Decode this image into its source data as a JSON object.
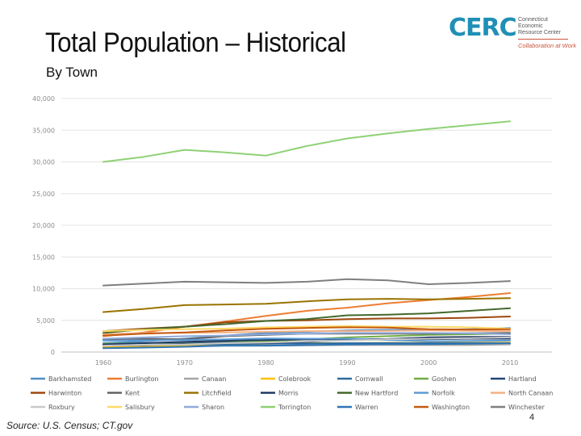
{
  "slide": {
    "title": "Total Population – Historical",
    "subtitle": "By Town",
    "source": "Source: U.S. Census; CT.gov",
    "page_number": "4"
  },
  "logo": {
    "mark": "CERC",
    "name": "Connecticut\nEconomic\nResource Center",
    "tagline": "Collaboration at Work"
  },
  "chart_data": {
    "type": "line",
    "title": "",
    "xlabel": "",
    "ylabel": "",
    "x": [
      1960,
      1965,
      1970,
      1975,
      1980,
      1985,
      1990,
      1995,
      2000,
      2005,
      2010
    ],
    "xticks": [
      1960,
      1970,
      1980,
      1990,
      2000,
      2010
    ],
    "ylim": [
      0,
      40000
    ],
    "yticks": [
      0,
      5000,
      10000,
      15000,
      20000,
      25000,
      30000,
      35000,
      40000
    ],
    "ytick_labels": [
      "0",
      "5,000",
      "10,000",
      "15,000",
      "20,000",
      "25,000",
      "30,000",
      "35,000",
      "40,000"
    ],
    "gridlines": "horizontal",
    "legend_position": "bottom",
    "series": [
      {
        "name": "Barkhamsted",
        "color": "#4e8fc7",
        "values": [
          1400,
          1700,
          2100,
          2600,
          3000,
          3200,
          3400,
          3500,
          3500,
          3600,
          3800
        ]
      },
      {
        "name": "Burlington",
        "color": "#ed7d31",
        "values": [
          2500,
          3100,
          4000,
          4800,
          5700,
          6500,
          7000,
          7700,
          8200,
          8700,
          9300
        ]
      },
      {
        "name": "Canaan",
        "color": "#a5a5a5",
        "values": [
          900,
          920,
          930,
          1000,
          1000,
          1050,
          1100,
          1100,
          1100,
          1100,
          1200
        ]
      },
      {
        "name": "Colebrook",
        "color": "#ffc000",
        "values": [
          800,
          900,
          1000,
          1200,
          1300,
          1400,
          1400,
          1450,
          1450,
          1480,
          1500
        ]
      },
      {
        "name": "Cornwall",
        "color": "#2e6b9e",
        "values": [
          1050,
          1100,
          1200,
          1250,
          1300,
          1350,
          1400,
          1420,
          1400,
          1420,
          1400
        ]
      },
      {
        "name": "Goshen",
        "color": "#70ad47",
        "values": [
          1300,
          1400,
          1500,
          1650,
          1700,
          2000,
          2300,
          2500,
          2700,
          2800,
          2900
        ]
      },
      {
        "name": "Hartland",
        "color": "#264478",
        "values": [
          1000,
          1100,
          1300,
          1500,
          1400,
          1600,
          1900,
          2000,
          2000,
          2100,
          2100
        ]
      },
      {
        "name": "Harwinton",
        "color": "#9e480e",
        "values": [
          3300,
          3700,
          4000,
          4700,
          4900,
          5000,
          5200,
          5300,
          5300,
          5400,
          5600
        ]
      },
      {
        "name": "Kent",
        "color": "#636363",
        "values": [
          2000,
          2100,
          2000,
          2500,
          2700,
          2900,
          2900,
          2900,
          2900,
          2950,
          3000
        ]
      },
      {
        "name": "Litchfield",
        "color": "#997300",
        "values": [
          6300,
          6800,
          7400,
          7500,
          7600,
          8000,
          8300,
          8400,
          8300,
          8400,
          8500
        ]
      },
      {
        "name": "Morris",
        "color": "#1f3864",
        "values": [
          1200,
          1400,
          1600,
          1800,
          1900,
          2000,
          2000,
          2050,
          2300,
          2400,
          2400
        ]
      },
      {
        "name": "New Hartford",
        "color": "#43682b",
        "values": [
          3000,
          3600,
          4000,
          4400,
          4900,
          5200,
          5800,
          5900,
          6100,
          6500,
          6900
        ]
      },
      {
        "name": "Norfolk",
        "color": "#5b9bd5",
        "values": [
          1800,
          1850,
          1900,
          2000,
          2150,
          2100,
          2100,
          1900,
          1700,
          1750,
          1800
        ]
      },
      {
        "name": "North Canaan",
        "color": "#f4b183",
        "values": [
          2800,
          3000,
          3000,
          3100,
          3200,
          3300,
          3300,
          3350,
          3400,
          3350,
          3300
        ]
      },
      {
        "name": "Roxbury",
        "color": "#c9c9c9",
        "values": [
          1000,
          1150,
          1200,
          1400,
          1500,
          1700,
          1800,
          2000,
          2100,
          2200,
          2300
        ]
      },
      {
        "name": "Salisbury",
        "color": "#ffd966",
        "values": [
          3300,
          3500,
          3600,
          3700,
          3900,
          4000,
          4100,
          4000,
          4000,
          3900,
          3700
        ]
      },
      {
        "name": "Sharon",
        "color": "#8faadc",
        "values": [
          2100,
          2300,
          2500,
          2600,
          2800,
          2900,
          3000,
          3000,
          3000,
          2950,
          2800
        ]
      },
      {
        "name": "Torrington",
        "color": "#8fd175",
        "values": [
          30000,
          30800,
          31900,
          31500,
          31000,
          32500,
          33700,
          34500,
          35200,
          35800,
          36400
        ]
      },
      {
        "name": "Warren",
        "color": "#2f75b5",
        "values": [
          600,
          700,
          830,
          1000,
          1000,
          1100,
          1200,
          1250,
          1250,
          1300,
          1400
        ]
      },
      {
        "name": "Washington",
        "color": "#c55a11",
        "values": [
          2600,
          2900,
          3100,
          3400,
          3650,
          3800,
          3900,
          3850,
          3600,
          3550,
          3600
        ]
      },
      {
        "name": "Winchester",
        "color": "#7f7f7f",
        "values": [
          10500,
          10800,
          11100,
          11000,
          10900,
          11100,
          11500,
          11300,
          10700,
          10900,
          11200
        ]
      }
    ]
  }
}
